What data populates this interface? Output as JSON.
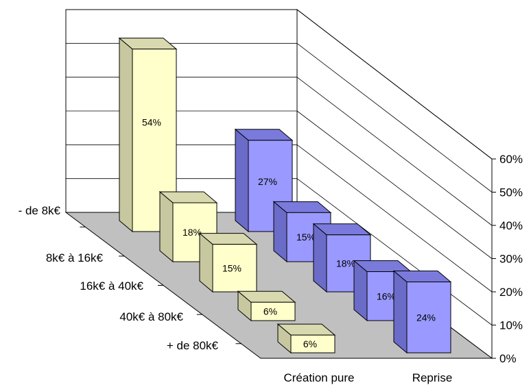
{
  "chart_data": {
    "type": "bar",
    "title": "",
    "categories": [
      "- de 8k€",
      "8k€ à 16k€",
      "16k€ à 40k€",
      "40k€ à 80k€",
      "+ de 80k€"
    ],
    "series": [
      {
        "name": "Création pure",
        "values": [
          54,
          18,
          15,
          6,
          6
        ],
        "data_labels": [
          "54%",
          "18%",
          "15%",
          "6%",
          "6%"
        ]
      },
      {
        "name": "Reprise",
        "values": [
          27,
          15,
          18,
          16,
          24
        ],
        "data_labels": [
          "27%",
          "15%",
          "18%",
          "16%",
          "24%"
        ]
      }
    ],
    "y_ticks": [
      "0%",
      "10%",
      "20%",
      "30%",
      "40%",
      "50%",
      "60%"
    ],
    "ylim": [
      0,
      60
    ],
    "grid": true,
    "colors": {
      "Création pure": {
        "front": "#FFFFCC",
        "side": "#C8C8A0",
        "top": "#D9D9B0"
      },
      "Reprise": {
        "front": "#9999FF",
        "side": "#6B6BC8",
        "top": "#7A7ADC"
      },
      "floor": "#C0C0C0"
    }
  }
}
